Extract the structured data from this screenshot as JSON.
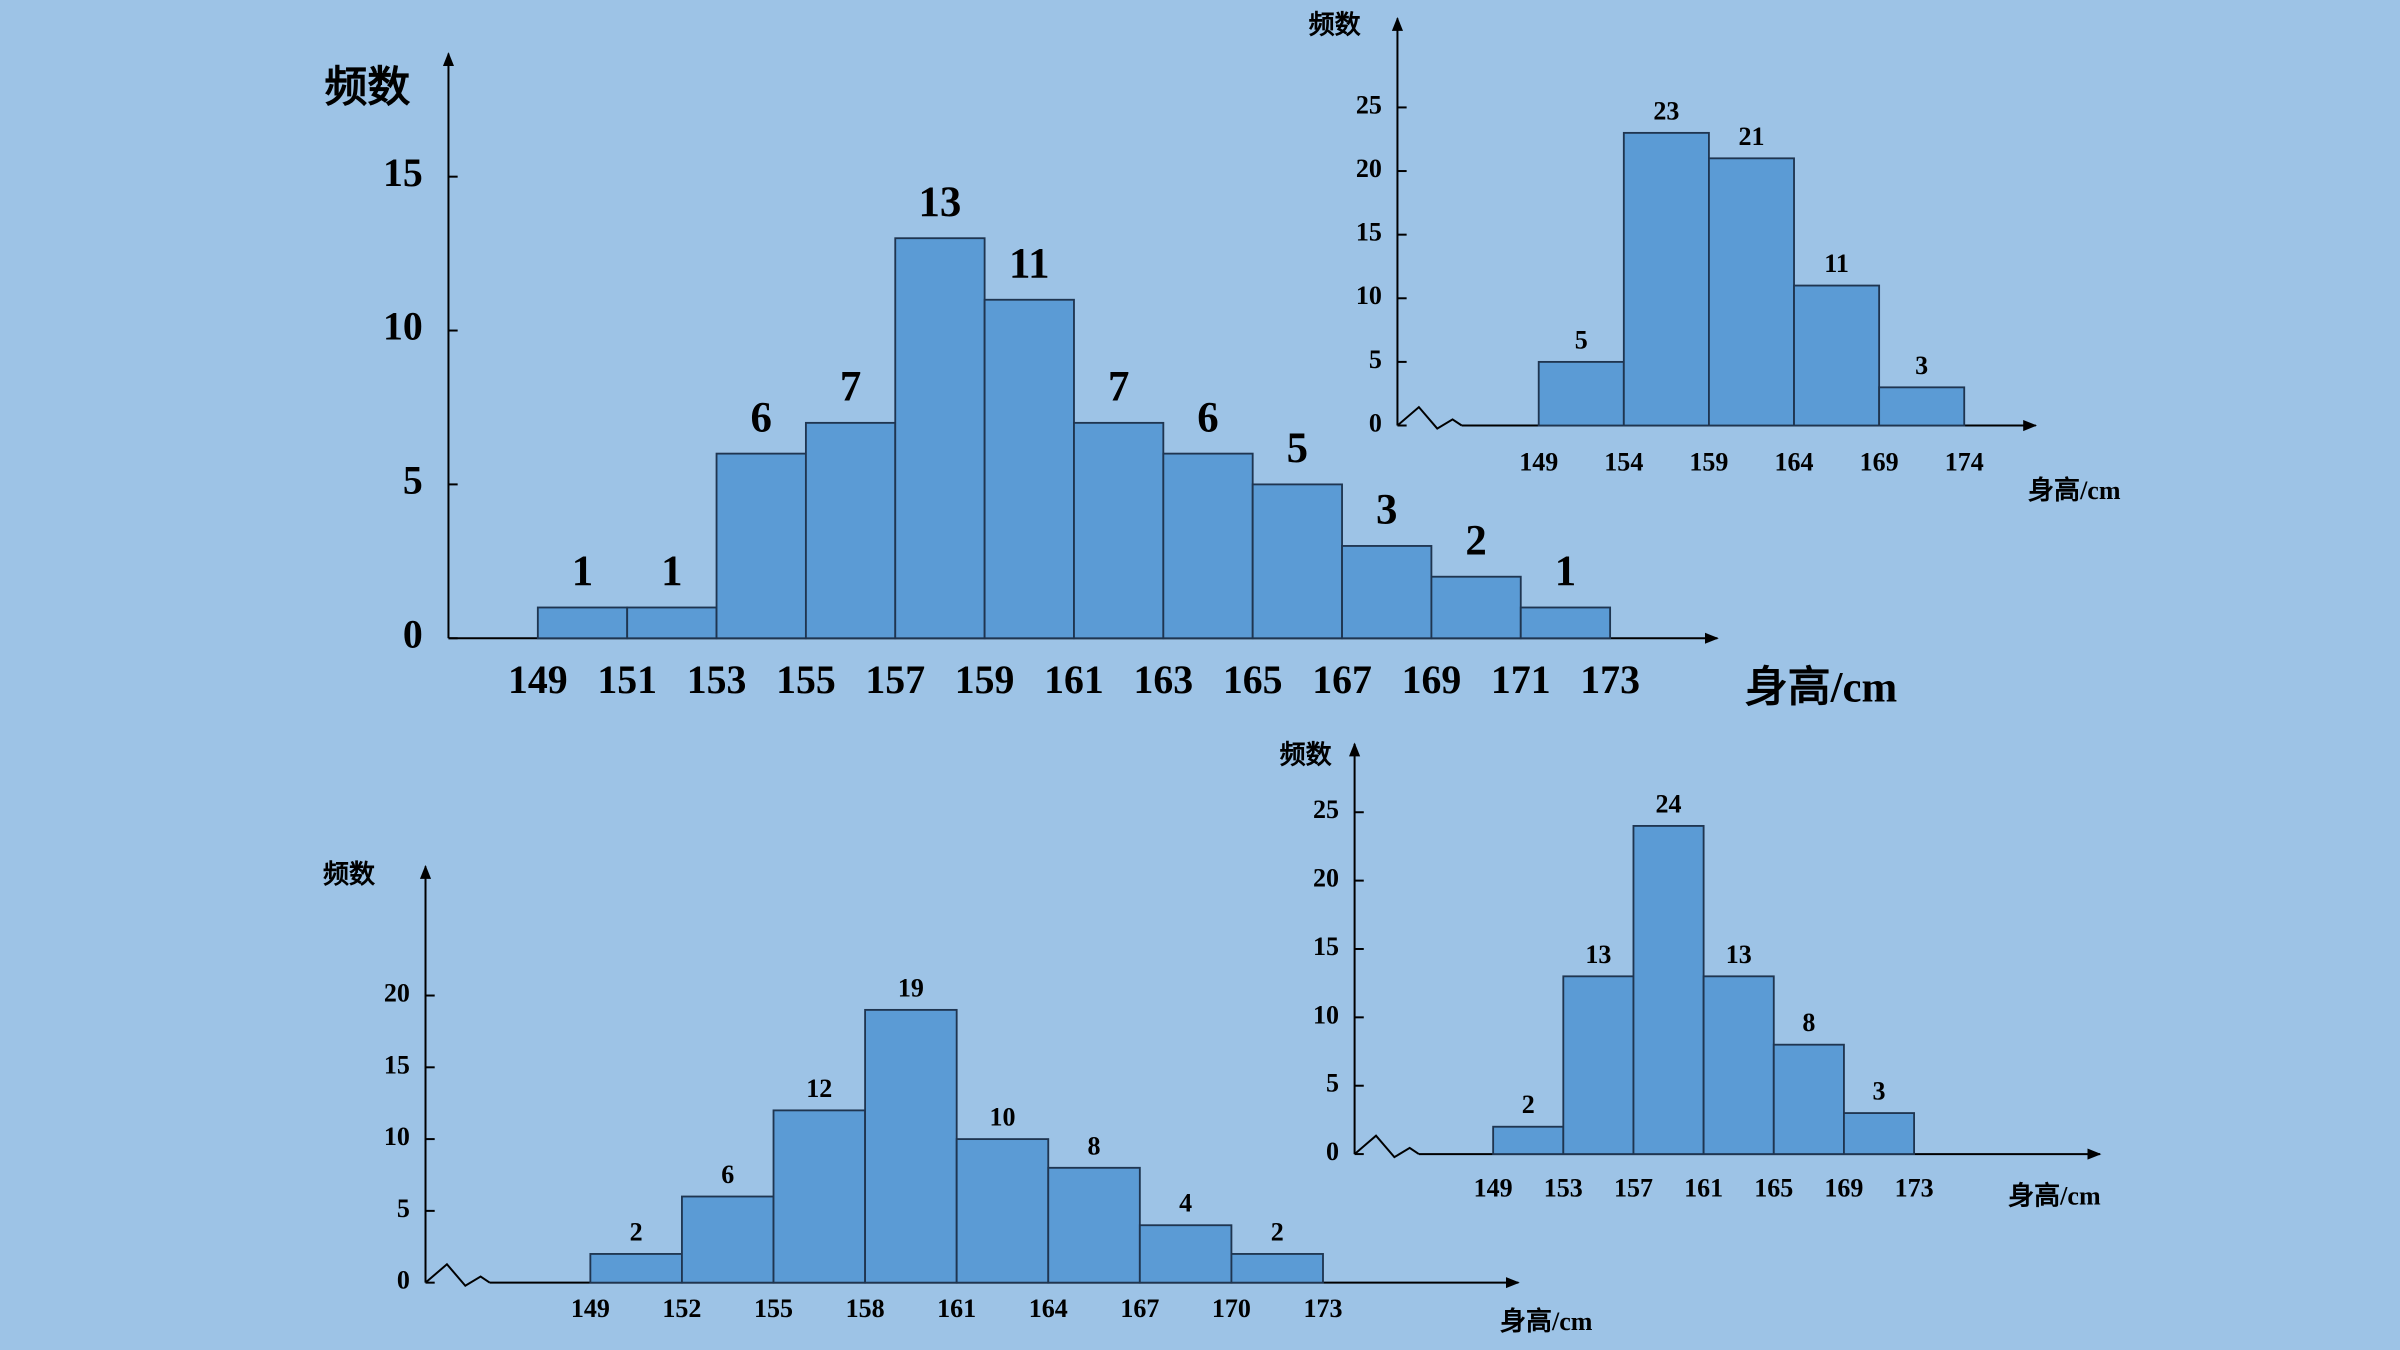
{
  "chart_data": [
    {
      "type": "histogram",
      "y_label": "频数",
      "x_label": "身高/cm",
      "bins": [
        149,
        151,
        153,
        155,
        157,
        159,
        161,
        163,
        165,
        167,
        169,
        171,
        173
      ],
      "values": [
        1,
        1,
        6,
        7,
        13,
        11,
        7,
        6,
        5,
        3,
        2,
        1
      ],
      "color": "#5b9bd5",
      "xlim": [
        147,
        175.4
      ],
      "ylim": [
        0,
        19
      ],
      "yticks": [
        0,
        5,
        10,
        15
      ]
    },
    {
      "type": "histogram",
      "y_label": "频数",
      "x_label": "身高/cm",
      "bins": [
        149,
        154,
        159,
        164,
        169,
        174
      ],
      "values": [
        5,
        23,
        21,
        11,
        3
      ],
      "color": "#5b9bd5",
      "xlim": [
        140.7,
        178.2
      ],
      "ylim": [
        0,
        32
      ],
      "yticks": [
        0,
        5,
        10,
        15,
        20,
        25
      ]
    },
    {
      "type": "histogram",
      "y_label": "频数",
      "x_label": "身高/cm",
      "bins": [
        149,
        152,
        155,
        158,
        161,
        164,
        167,
        170,
        173
      ],
      "values": [
        2,
        6,
        12,
        19,
        10,
        8,
        4,
        2
      ],
      "color": "#5b9bd5",
      "xlim": [
        143.6,
        179.4
      ],
      "ylim": [
        0,
        29
      ],
      "yticks": [
        0,
        5,
        10,
        15,
        20
      ]
    },
    {
      "type": "histogram",
      "y_label": "频数",
      "x_label": "身高/cm",
      "bins": [
        149,
        153,
        157,
        161,
        165,
        169,
        173
      ],
      "values": [
        2,
        13,
        24,
        13,
        8,
        3
      ],
      "color": "#5b9bd5",
      "xlim": [
        141.1,
        183.6
      ],
      "ylim": [
        0,
        30
      ],
      "yticks": [
        0,
        5,
        10,
        15,
        20,
        25
      ]
    }
  ]
}
